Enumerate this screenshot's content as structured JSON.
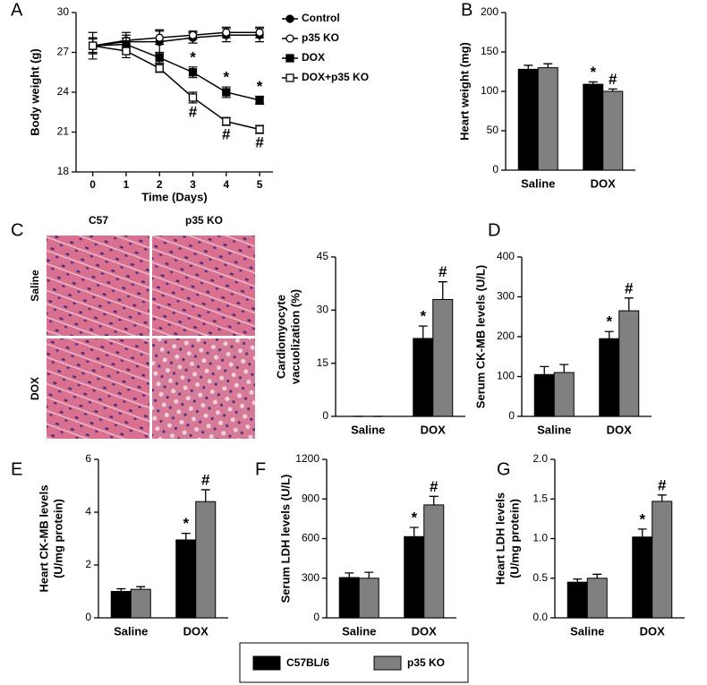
{
  "histology": {
    "label": "C",
    "columns": [
      "C57",
      "p35 KO"
    ],
    "rows": [
      "Saline",
      "DOX"
    ]
  },
  "chart_data": [
    {
      "type": "line",
      "label": "A",
      "xlabel": "Time (Days)",
      "ylabel": "Body weight (g)",
      "x": [
        0,
        1,
        2,
        3,
        4,
        5
      ],
      "xlim": [
        -0.5,
        5.4
      ],
      "xticks": [
        0,
        1,
        2,
        3,
        4,
        5
      ],
      "ylim": [
        18,
        30
      ],
      "yticks": [
        18,
        21,
        24,
        27,
        30
      ],
      "series": [
        {
          "name": "Control",
          "color": "#000000",
          "marker": "circle",
          "filled": true,
          "values": [
            27.5,
            27.8,
            27.8,
            28.1,
            28.3,
            28.3
          ],
          "errors": [
            0.6,
            0.5,
            0.9,
            0.4,
            0.5,
            0.5
          ]
        },
        {
          "name": "p35 KO",
          "color": "#000000",
          "marker": "circle",
          "filled": false,
          "values": [
            27.5,
            27.9,
            28.1,
            28.3,
            28.5,
            28.5
          ],
          "errors": [
            1.0,
            0.6,
            0.5,
            0.3,
            0.4,
            0.4
          ]
        },
        {
          "name": "DOX",
          "color": "#000000",
          "marker": "square",
          "filled": true,
          "values": [
            27.5,
            27.6,
            26.6,
            25.5,
            24.0,
            23.4
          ],
          "errors": [
            0.5,
            0.5,
            0.4,
            0.4,
            0.4,
            0.3
          ],
          "significance": [
            null,
            null,
            null,
            "*",
            "*",
            "*"
          ]
        },
        {
          "name": "DOX+p35 KO",
          "color": "#000000",
          "marker": "square",
          "filled": false,
          "values": [
            27.5,
            27.1,
            25.8,
            23.6,
            21.8,
            21.2
          ],
          "errors": [
            0.6,
            0.5,
            0.3,
            0.4,
            0.3,
            0.3
          ],
          "significance": [
            null,
            null,
            null,
            "#",
            "#",
            "#"
          ]
        }
      ]
    },
    {
      "type": "bar",
      "label": "B",
      "ylabel": "Heart weight (mg)",
      "categories": [
        "Saline",
        "DOX"
      ],
      "ylim": [
        0,
        200
      ],
      "yticks": [
        0,
        50,
        100,
        150,
        200
      ],
      "series": [
        {
          "name": "C57BL/6",
          "color": "#000000",
          "values": [
            128,
            109
          ],
          "errors": [
            5,
            3
          ],
          "significance": [
            null,
            "*"
          ]
        },
        {
          "name": "p35 KO",
          "color": "#808080",
          "values": [
            130,
            100
          ],
          "errors": [
            5,
            3
          ],
          "significance": [
            null,
            "#"
          ]
        }
      ]
    },
    {
      "type": "bar",
      "ylabel": [
        "Cardiomyocyte",
        "vacuolization (%)"
      ],
      "categories": [
        "Saline",
        "DOX"
      ],
      "ylim": [
        0,
        45
      ],
      "yticks": [
        0,
        15,
        30,
        45
      ],
      "series": [
        {
          "name": "C57BL/6",
          "color": "#000000",
          "values": [
            0,
            22
          ],
          "errors": [
            0,
            3.5
          ],
          "significance": [
            null,
            "*"
          ]
        },
        {
          "name": "p35 KO",
          "color": "#808080",
          "values": [
            0,
            33
          ],
          "errors": [
            0,
            5
          ],
          "significance": [
            null,
            "#"
          ]
        }
      ]
    },
    {
      "type": "bar",
      "label": "D",
      "ylabel": "Serum CK-MB levels (U/L)",
      "categories": [
        "Saline",
        "DOX"
      ],
      "ylim": [
        0,
        400
      ],
      "yticks": [
        0,
        100,
        200,
        300,
        400
      ],
      "series": [
        {
          "name": "C57BL/6",
          "color": "#000000",
          "values": [
            105,
            195
          ],
          "errors": [
            20,
            18
          ],
          "significance": [
            null,
            "*"
          ]
        },
        {
          "name": "p35 KO",
          "color": "#808080",
          "values": [
            110,
            265
          ],
          "errors": [
            20,
            32
          ],
          "significance": [
            null,
            "#"
          ]
        }
      ]
    },
    {
      "type": "bar",
      "label": "E",
      "ylabel": [
        "Heart CK-MB levels",
        "(U/mg protein)"
      ],
      "categories": [
        "Saline",
        "DOX"
      ],
      "ylim": [
        0,
        6
      ],
      "yticks": [
        0,
        2,
        4,
        6
      ],
      "series": [
        {
          "name": "C57BL/6",
          "color": "#000000",
          "values": [
            1.0,
            2.95
          ],
          "errors": [
            0.1,
            0.25
          ],
          "significance": [
            null,
            "*"
          ]
        },
        {
          "name": "p35 KO",
          "color": "#808080",
          "values": [
            1.08,
            4.4
          ],
          "errors": [
            0.1,
            0.45
          ],
          "significance": [
            null,
            "#"
          ]
        }
      ]
    },
    {
      "type": "bar",
      "label": "F",
      "ylabel": "Serum LDH levels (U/L)",
      "categories": [
        "Saline",
        "DOX"
      ],
      "ylim": [
        0,
        1200
      ],
      "yticks": [
        0,
        300,
        600,
        900,
        1200
      ],
      "series": [
        {
          "name": "C57BL/6",
          "color": "#000000",
          "values": [
            305,
            615
          ],
          "errors": [
            35,
            70
          ],
          "significance": [
            null,
            "*"
          ]
        },
        {
          "name": "p35 KO",
          "color": "#808080",
          "values": [
            300,
            855
          ],
          "errors": [
            45,
            65
          ],
          "significance": [
            null,
            "#"
          ]
        }
      ]
    },
    {
      "type": "bar",
      "label": "G",
      "ylabel": [
        "Heart LDH levels",
        "(U/mg protein)"
      ],
      "categories": [
        "Saline",
        "DOX"
      ],
      "ylim": [
        0,
        2
      ],
      "yticks": [
        {
          "value": 0,
          "label": "0.0"
        },
        {
          "value": 0.5,
          "label": "0.5"
        },
        {
          "value": 1,
          "label": "1.0"
        },
        {
          "value": 1.5,
          "label": "1.5"
        },
        {
          "value": 2,
          "label": "2.0"
        }
      ],
      "series": [
        {
          "name": "C57BL/6",
          "color": "#000000",
          "values": [
            0.45,
            1.02
          ],
          "errors": [
            0.04,
            0.1
          ],
          "significance": [
            null,
            "*"
          ]
        },
        {
          "name": "p35 KO",
          "color": "#808080",
          "values": [
            0.5,
            1.47
          ],
          "errors": [
            0.05,
            0.08
          ],
          "significance": [
            null,
            "#"
          ]
        }
      ]
    }
  ]
}
